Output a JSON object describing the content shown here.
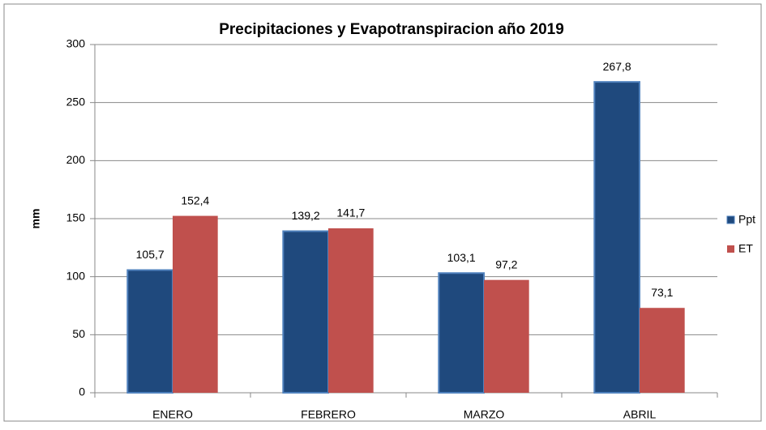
{
  "chart_data": {
    "type": "bar",
    "title": "Precipitaciones y Evapotranspiracion año 2019",
    "y_label": "mm",
    "categories": [
      "ENERO",
      "FEBRERO",
      "MARZO",
      "ABRIL"
    ],
    "series": [
      {
        "name": "Ppt",
        "color": "#1f497d",
        "values": [
          105.7,
          139.2,
          103.1,
          267.8
        ],
        "value_labels": [
          "105,7",
          "139,2",
          "103,1",
          "267,8"
        ]
      },
      {
        "name": "ET",
        "color": "#c0504d",
        "values": [
          152.4,
          141.7,
          97.2,
          73.1
        ],
        "value_labels": [
          "152,4",
          "141,7",
          "97,2",
          "73,1"
        ]
      }
    ],
    "ylim": [
      0,
      300
    ],
    "yticks": [
      0,
      50,
      100,
      150,
      200,
      250,
      300
    ],
    "grid": true,
    "legend": "right"
  }
}
